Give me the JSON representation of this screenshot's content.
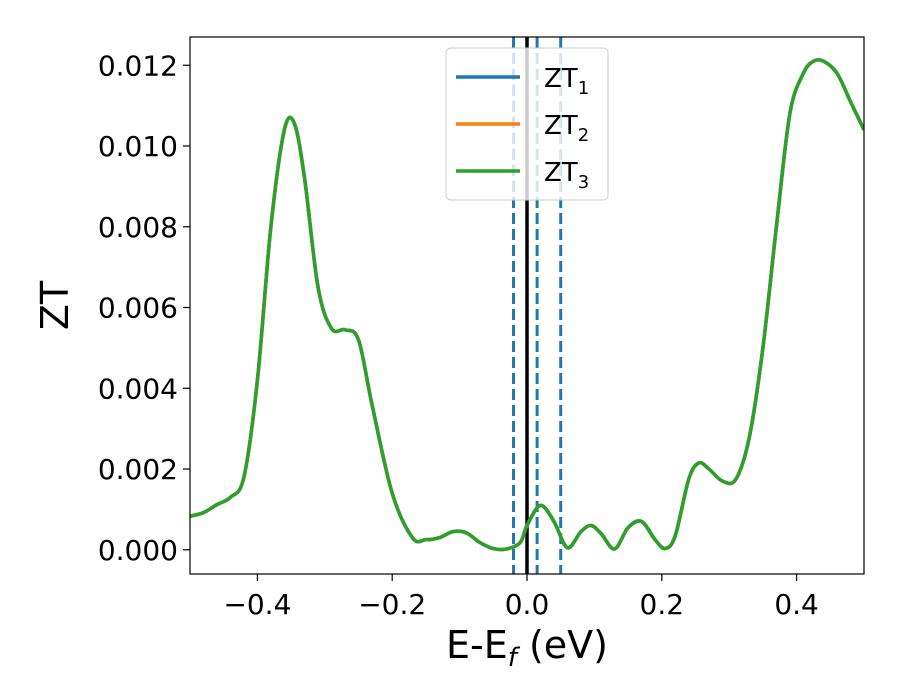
{
  "chart_data": {
    "type": "line",
    "xlabel": "E-E",
    "xlabel_sub": "f",
    "xlabel_unit": " (eV)",
    "ylabel": "ZT",
    "xlim": [
      -0.5,
      0.5
    ],
    "ylim": [
      -0.0006,
      0.0127
    ],
    "xticks": [
      -0.4,
      -0.2,
      0.0,
      0.2,
      0.4
    ],
    "xtick_labels": [
      "−0.4",
      "−0.2",
      "0.0",
      "0.2",
      "0.4"
    ],
    "yticks": [
      0.0,
      0.002,
      0.004,
      0.006,
      0.008,
      0.01,
      0.012
    ],
    "ytick_labels": [
      "0.000",
      "0.002",
      "0.004",
      "0.006",
      "0.008",
      "0.010",
      "0.012"
    ],
    "legend_position": "top-center",
    "series": [
      {
        "name": "ZT",
        "sub": "1",
        "color": "#1f77b4"
      },
      {
        "name": "ZT",
        "sub": "2",
        "color": "#ff7f0e"
      },
      {
        "name": "ZT",
        "sub": "3",
        "color": "#2ca02c"
      }
    ],
    "x": [
      -0.5,
      -0.48,
      -0.46,
      -0.44,
      -0.42,
      -0.4,
      -0.38,
      -0.36,
      -0.345,
      -0.33,
      -0.31,
      -0.29,
      -0.27,
      -0.25,
      -0.23,
      -0.2,
      -0.17,
      -0.15,
      -0.13,
      -0.11,
      -0.09,
      -0.07,
      -0.05,
      -0.03,
      -0.01,
      0.0,
      0.02,
      0.04,
      0.06,
      0.08,
      0.095,
      0.11,
      0.13,
      0.15,
      0.17,
      0.19,
      0.205,
      0.22,
      0.24,
      0.255,
      0.27,
      0.29,
      0.31,
      0.33,
      0.35,
      0.37,
      0.39,
      0.41,
      0.425,
      0.44,
      0.46,
      0.48,
      0.5
    ],
    "y": [
      0.00083,
      0.00092,
      0.00112,
      0.0013,
      0.0018,
      0.0042,
      0.008,
      0.0104,
      0.01055,
      0.0092,
      0.0065,
      0.00548,
      0.00545,
      0.0052,
      0.0036,
      0.0014,
      0.0003,
      0.00025,
      0.0003,
      0.00045,
      0.00042,
      0.00018,
      3e-05,
      2e-05,
      0.00018,
      0.0006,
      0.0011,
      0.0007,
      5e-05,
      0.00045,
      0.0006,
      0.0004,
      2e-05,
      0.00055,
      0.0007,
      0.00025,
      3e-05,
      0.00035,
      0.00175,
      0.00215,
      0.002,
      0.0017,
      0.00175,
      0.0028,
      0.005,
      0.008,
      0.0108,
      0.0118,
      0.0121,
      0.0121,
      0.0118,
      0.0111,
      0.0104
    ],
    "vlines": [
      {
        "x": 0.0,
        "color": "#000000",
        "style": "solid"
      },
      {
        "x": -0.02,
        "color": "#1f77b4",
        "style": "dashed"
      },
      {
        "x": 0.015,
        "color": "#1f77b4",
        "style": "dashed"
      },
      {
        "x": 0.05,
        "color": "#1f77b4",
        "style": "dashed"
      }
    ]
  }
}
